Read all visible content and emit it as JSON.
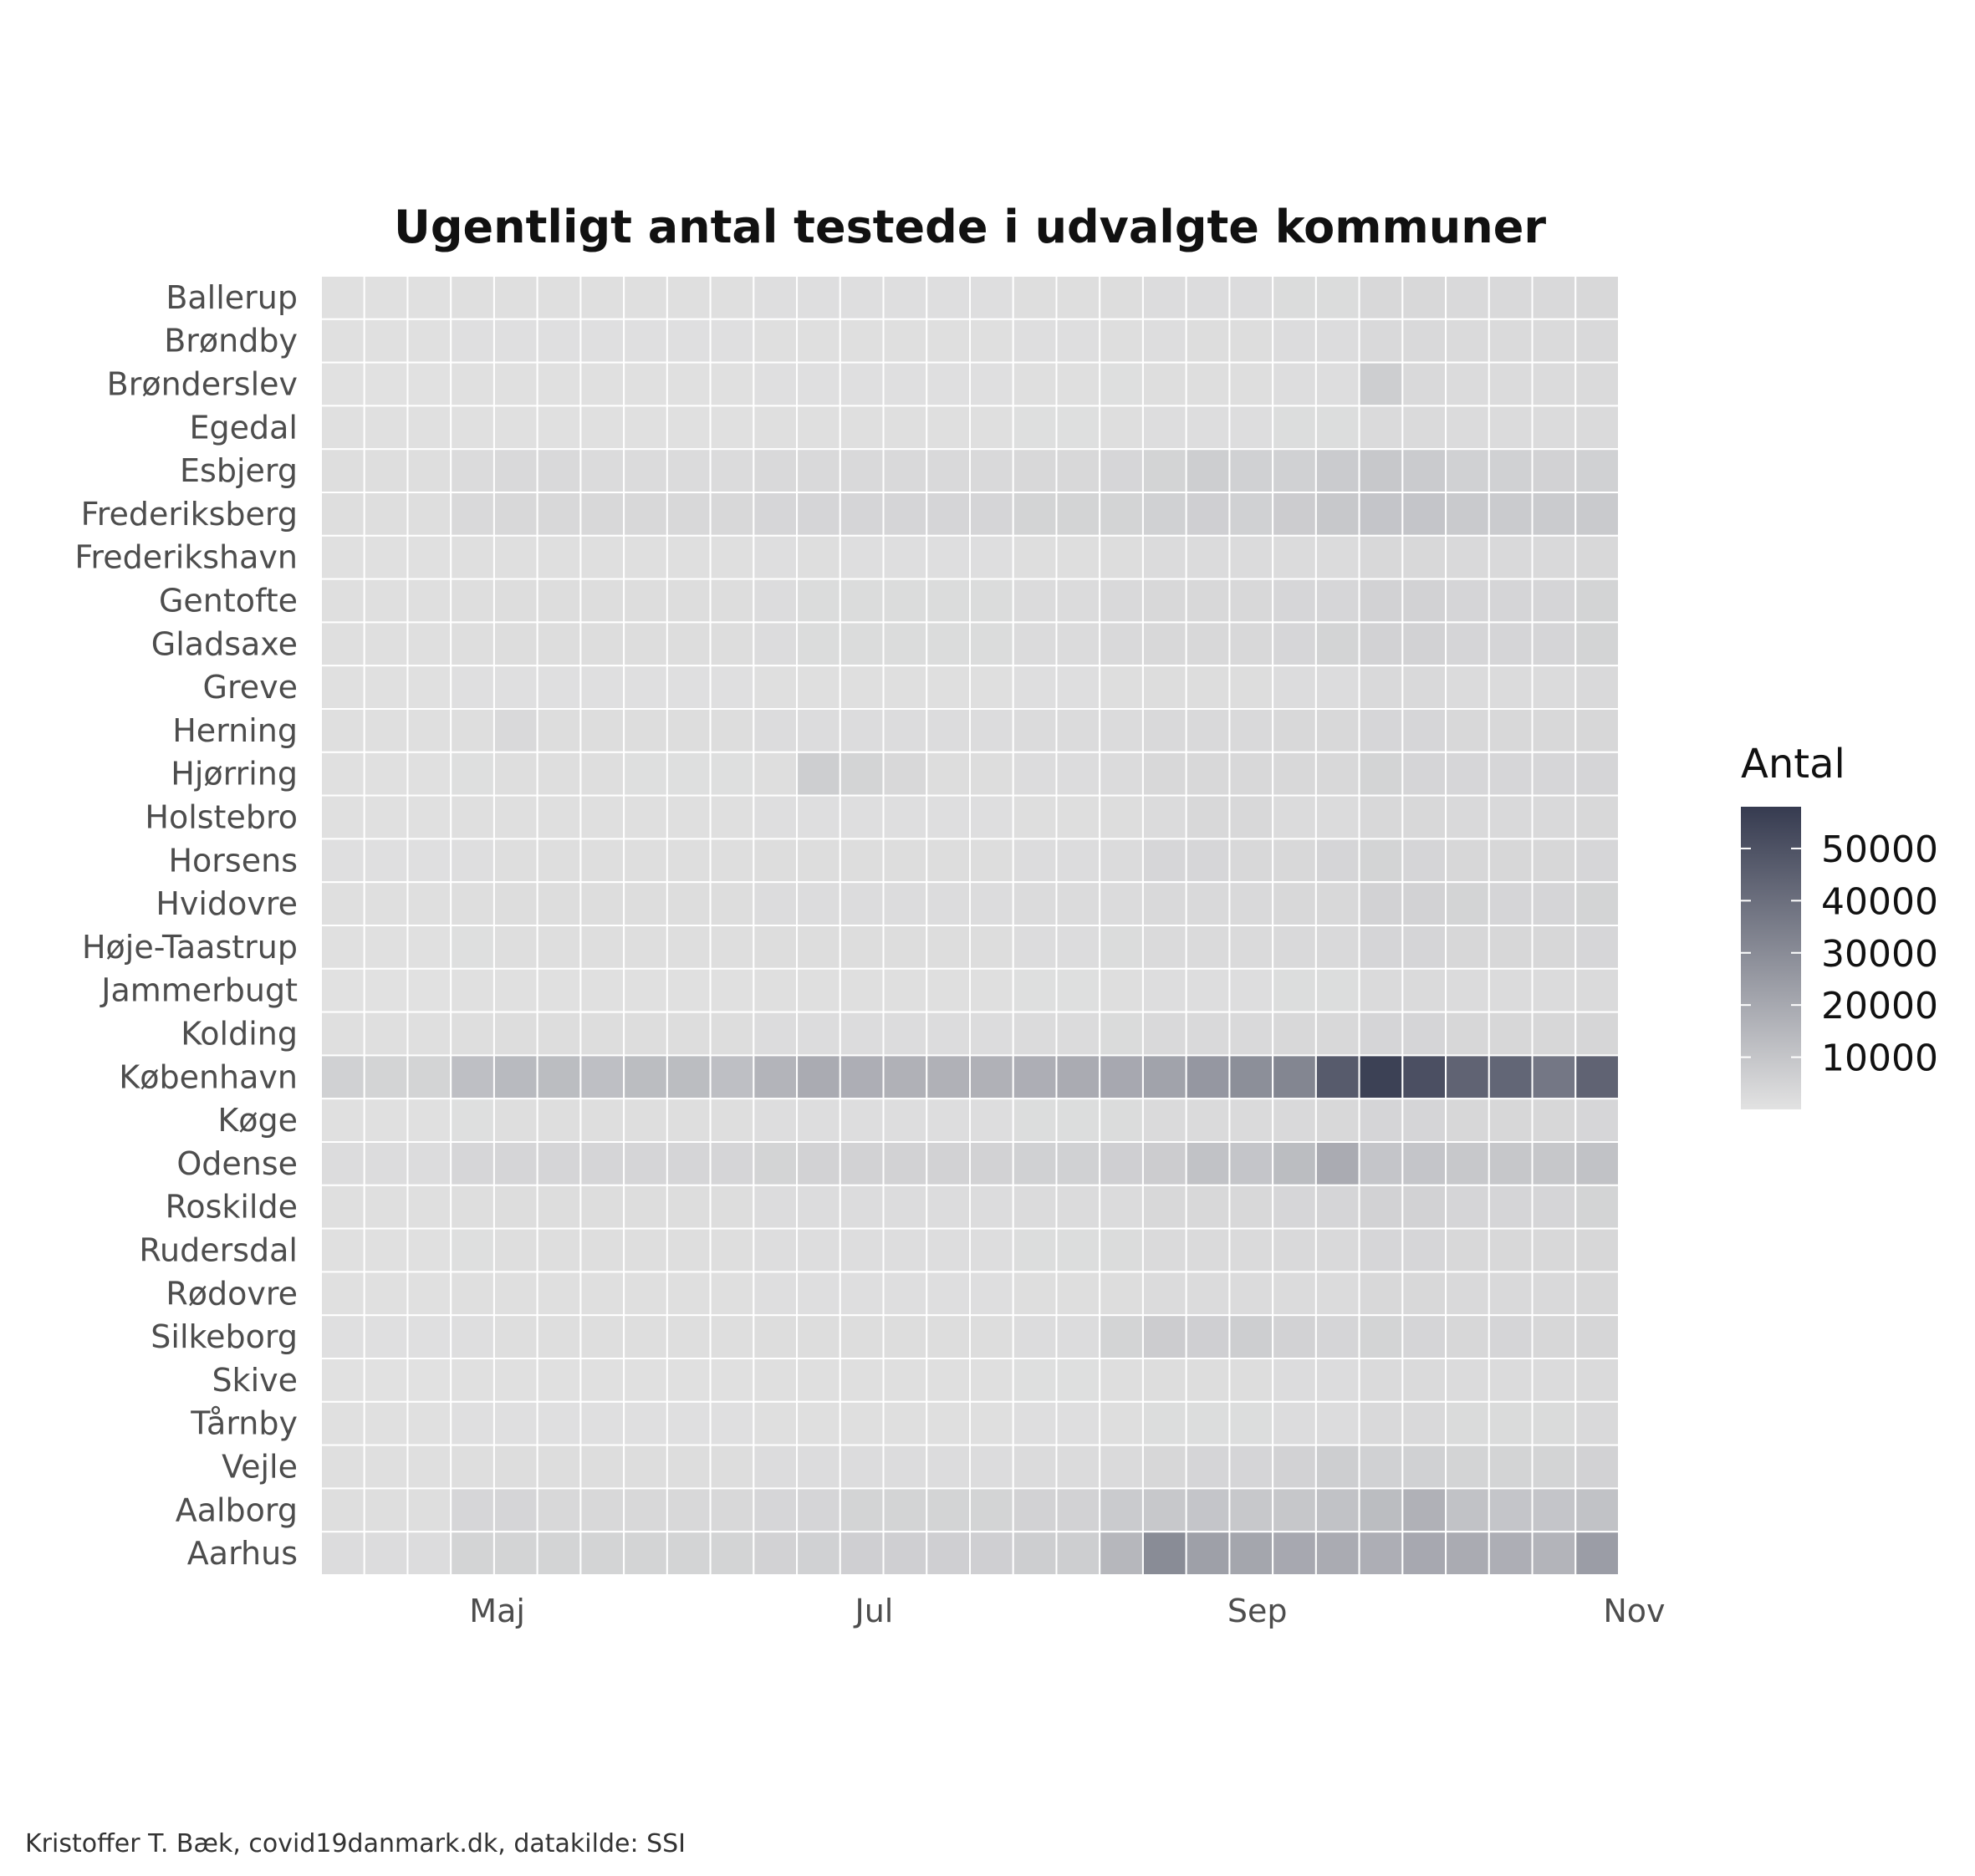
{
  "chart_data": {
    "type": "heatmap",
    "title": "Ugentligt antal testede i udvalgte kommuner",
    "caption": "Kristoffer T. Bæk, covid19danmark.dk, datakilde: SSI",
    "week_start": [
      "2020-04-06",
      "2020-04-13",
      "2020-04-20",
      "2020-04-27",
      "2020-05-04",
      "2020-05-11",
      "2020-05-18",
      "2020-05-25",
      "2020-06-01",
      "2020-06-08",
      "2020-06-15",
      "2020-06-22",
      "2020-06-29",
      "2020-07-06",
      "2020-07-13",
      "2020-07-20",
      "2020-07-27",
      "2020-08-03",
      "2020-08-10",
      "2020-08-17",
      "2020-08-24",
      "2020-08-31",
      "2020-09-07",
      "2020-09-14",
      "2020-09-21",
      "2020-09-28",
      "2020-10-05",
      "2020-10-12",
      "2020-10-19",
      "2020-10-26"
    ],
    "x_ticks": [
      {
        "label": "Maj",
        "date": "2020-05-01"
      },
      {
        "label": "Jul",
        "date": "2020-07-01"
      },
      {
        "label": "Sep",
        "date": "2020-09-01"
      },
      {
        "label": "Nov",
        "date": "2020-11-01"
      }
    ],
    "rows": [
      {
        "name": "Ballerup",
        "values": [
          800,
          800,
          800,
          1100,
          1100,
          1100,
          1100,
          1100,
          1100,
          1100,
          1300,
          1300,
          1300,
          1300,
          1300,
          1300,
          1500,
          1500,
          1800,
          2000,
          2000,
          2000,
          2200,
          2200,
          3500,
          3500,
          3000,
          3000,
          3000,
          3500
        ]
      },
      {
        "name": "Brøndby",
        "values": [
          700,
          700,
          700,
          900,
          900,
          900,
          900,
          900,
          900,
          900,
          1100,
          1100,
          1100,
          1100,
          1100,
          1100,
          1300,
          1300,
          1500,
          1700,
          1800,
          1800,
          2000,
          2000,
          3000,
          3000,
          2700,
          2700,
          2700,
          3000
        ]
      },
      {
        "name": "Brønderslev",
        "values": [
          500,
          500,
          500,
          700,
          700,
          700,
          700,
          700,
          700,
          700,
          900,
          900,
          900,
          900,
          900,
          900,
          1000,
          1000,
          1200,
          1400,
          1500,
          1500,
          1700,
          1700,
          7000,
          3000,
          2500,
          2500,
          2500,
          2800
        ]
      },
      {
        "name": "Egedal",
        "values": [
          600,
          600,
          600,
          800,
          800,
          800,
          800,
          800,
          800,
          800,
          1000,
          1000,
          1000,
          1000,
          1000,
          1000,
          1200,
          1200,
          1400,
          1600,
          1700,
          1700,
          1900,
          1900,
          2800,
          2800,
          2500,
          2500,
          2500,
          2800
        ]
      },
      {
        "name": "Esbjerg",
        "values": [
          1500,
          1500,
          1500,
          2500,
          3000,
          3000,
          2500,
          2500,
          2500,
          2500,
          3000,
          3000,
          3000,
          3000,
          3000,
          3000,
          3500,
          3500,
          4000,
          5000,
          7000,
          6000,
          6000,
          8000,
          9000,
          8000,
          6000,
          6000,
          5500,
          6000
        ]
      },
      {
        "name": "Frederiksberg",
        "values": [
          1500,
          1500,
          1500,
          3000,
          3500,
          3500,
          3500,
          3500,
          3500,
          3500,
          4000,
          4500,
          4500,
          4500,
          4500,
          4500,
          5000,
          5000,
          5000,
          6000,
          6500,
          6000,
          7500,
          9000,
          10000,
          10000,
          8500,
          8000,
          8000,
          8500
        ]
      },
      {
        "name": "Frederikshavn",
        "values": [
          700,
          700,
          700,
          1000,
          1000,
          1000,
          1000,
          1000,
          1000,
          1000,
          1300,
          1500,
          1300,
          1300,
          1300,
          1300,
          1500,
          1500,
          1800,
          2300,
          2500,
          2500,
          2500,
          2500,
          3500,
          3500,
          3000,
          3000,
          3000,
          3500
        ]
      },
      {
        "name": "Gentofte",
        "values": [
          1000,
          1000,
          1000,
          1500,
          1800,
          1800,
          1800,
          1800,
          1800,
          1800,
          2000,
          2200,
          2200,
          2200,
          2200,
          2200,
          2500,
          2500,
          3000,
          3500,
          3500,
          3500,
          4000,
          4000,
          5500,
          5500,
          4500,
          4500,
          4500,
          5000
        ]
      },
      {
        "name": "Gladsaxe",
        "values": [
          1000,
          1000,
          1000,
          1500,
          1800,
          1800,
          1800,
          1800,
          1800,
          1800,
          2000,
          2200,
          2200,
          2200,
          2200,
          2200,
          2500,
          2500,
          3000,
          3500,
          3500,
          3500,
          4000,
          5000,
          5500,
          5500,
          4500,
          4500,
          4500,
          5000
        ]
      },
      {
        "name": "Greve",
        "values": [
          600,
          600,
          600,
          900,
          900,
          900,
          900,
          900,
          900,
          900,
          1100,
          1100,
          1100,
          1100,
          1100,
          1100,
          1300,
          1300,
          1500,
          1800,
          1800,
          1800,
          2000,
          2000,
          3000,
          3000,
          2500,
          2500,
          2500,
          3000
        ]
      },
      {
        "name": "Herning",
        "values": [
          1000,
          1000,
          1000,
          1500,
          3000,
          1800,
          1800,
          1800,
          1800,
          1800,
          2000,
          2000,
          2000,
          2000,
          2000,
          2000,
          2300,
          2300,
          2500,
          3000,
          3000,
          3000,
          3500,
          3500,
          4000,
          4000,
          3500,
          3500,
          3500,
          3800
        ]
      },
      {
        "name": "Hjørring",
        "values": [
          800,
          800,
          800,
          1200,
          1500,
          1500,
          1500,
          1200,
          1200,
          1200,
          1500,
          7000,
          5000,
          3500,
          1800,
          1800,
          2000,
          2000,
          2500,
          3500,
          3500,
          3500,
          3500,
          3500,
          5000,
          4500,
          4000,
          4000,
          4000,
          4500
        ]
      },
      {
        "name": "Holstebro",
        "values": [
          700,
          700,
          700,
          1000,
          1000,
          1000,
          1000,
          1000,
          1000,
          1000,
          1300,
          1300,
          1300,
          1300,
          1300,
          1300,
          1500,
          1500,
          1800,
          2300,
          3500,
          3500,
          2500,
          2500,
          3500,
          3500,
          3000,
          3000,
          3000,
          3500
        ]
      },
      {
        "name": "Horsens",
        "values": [
          900,
          900,
          900,
          1300,
          1500,
          1500,
          1500,
          1500,
          1500,
          1500,
          1800,
          1800,
          1800,
          1800,
          1800,
          1800,
          2000,
          2000,
          2500,
          4000,
          4000,
          3500,
          3500,
          4500,
          5000,
          4500,
          3800,
          3800,
          3800,
          4000
        ]
      },
      {
        "name": "Hvidovre",
        "values": [
          1000,
          1000,
          1000,
          1500,
          1800,
          1800,
          1800,
          1800,
          1800,
          1800,
          2000,
          2000,
          2000,
          2000,
          2000,
          2000,
          2300,
          2300,
          2500,
          3000,
          3000,
          3000,
          3500,
          3500,
          5500,
          5500,
          5000,
          4500,
          4500,
          5000
        ]
      },
      {
        "name": "Høje-Taastrup",
        "values": [
          800,
          800,
          800,
          1200,
          1500,
          1500,
          1500,
          1500,
          1500,
          1500,
          1800,
          1800,
          1800,
          1800,
          1800,
          1800,
          2000,
          2000,
          2200,
          2800,
          2800,
          2800,
          3000,
          3000,
          4500,
          4500,
          3800,
          3800,
          3800,
          4000
        ]
      },
      {
        "name": "Jammerbugt",
        "values": [
          500,
          500,
          500,
          800,
          800,
          800,
          800,
          800,
          800,
          800,
          1000,
          1000,
          1000,
          1000,
          1000,
          1000,
          1200,
          1200,
          1400,
          1700,
          1700,
          1700,
          1900,
          1900,
          2800,
          2800,
          2400,
          2400,
          2400,
          2700
        ]
      },
      {
        "name": "Kolding",
        "values": [
          1000,
          1000,
          1000,
          1500,
          1800,
          1800,
          1800,
          1800,
          1800,
          1800,
          2000,
          2000,
          2000,
          2000,
          2000,
          2000,
          2300,
          2300,
          2600,
          3200,
          3200,
          3200,
          3500,
          3500,
          4500,
          4500,
          3800,
          3800,
          3800,
          4200
        ]
      },
      {
        "name": "København",
        "values": [
          6000,
          5000,
          5000,
          12000,
          14000,
          13000,
          12000,
          13000,
          13000,
          12000,
          16000,
          19000,
          18000,
          17000,
          17000,
          17000,
          18000,
          19000,
          20000,
          22000,
          26000,
          29000,
          32000,
          47000,
          56000,
          51000,
          44000,
          43000,
          37000,
          44000
        ]
      },
      {
        "name": "Køge",
        "values": [
          800,
          800,
          800,
          1200,
          1400,
          1400,
          1400,
          1400,
          1400,
          1400,
          1700,
          1700,
          1700,
          1700,
          1700,
          1700,
          1900,
          1900,
          2200,
          2800,
          2800,
          2800,
          3000,
          3500,
          4500,
          4500,
          3800,
          3800,
          3800,
          4000
        ]
      },
      {
        "name": "Odense",
        "values": [
          2000,
          2000,
          2000,
          4000,
          4500,
          4500,
          4500,
          4500,
          4500,
          4500,
          5000,
          5500,
          5500,
          5500,
          5500,
          5500,
          6000,
          6000,
          6500,
          7500,
          11000,
          10000,
          13000,
          19000,
          10000,
          10000,
          9000,
          9500,
          9500,
          11000
        ]
      },
      {
        "name": "Roskilde",
        "values": [
          1000,
          1000,
          1000,
          1500,
          1800,
          1800,
          1800,
          1800,
          1800,
          1800,
          2000,
          2000,
          2000,
          2000,
          2000,
          2000,
          2300,
          2300,
          2500,
          3500,
          3500,
          3500,
          4000,
          4500,
          5500,
          5500,
          4500,
          4500,
          4500,
          5000
        ]
      },
      {
        "name": "Rudersdal",
        "values": [
          800,
          800,
          800,
          1200,
          1400,
          1400,
          1400,
          1400,
          1400,
          1400,
          1700,
          1700,
          1700,
          1700,
          1700,
          1700,
          1900,
          1900,
          2200,
          2800,
          2800,
          2800,
          3000,
          3000,
          4000,
          4000,
          3500,
          3500,
          3500,
          3800
        ]
      },
      {
        "name": "Rødovre",
        "values": [
          700,
          700,
          700,
          1000,
          1100,
          1100,
          1100,
          1100,
          1100,
          1100,
          1300,
          1300,
          1300,
          1300,
          1300,
          1300,
          1500,
          1500,
          1800,
          2300,
          2300,
          2300,
          2500,
          2500,
          3500,
          3500,
          3000,
          3000,
          3000,
          3500
        ]
      },
      {
        "name": "Silkeborg",
        "values": [
          900,
          900,
          900,
          1300,
          1500,
          1500,
          1500,
          1500,
          1500,
          1500,
          1800,
          1800,
          1800,
          1800,
          1800,
          1800,
          2000,
          2000,
          5000,
          7500,
          6500,
          7000,
          5500,
          4500,
          5000,
          4500,
          3800,
          4500,
          3800,
          4200
        ]
      },
      {
        "name": "Skive",
        "values": [
          500,
          500,
          500,
          800,
          800,
          800,
          800,
          800,
          800,
          800,
          1000,
          1000,
          1000,
          1000,
          1000,
          1000,
          1200,
          1200,
          1400,
          1800,
          1800,
          1800,
          2000,
          2000,
          2800,
          2800,
          2400,
          2400,
          2400,
          2800
        ]
      },
      {
        "name": "Tårnby",
        "values": [
          600,
          600,
          600,
          900,
          900,
          900,
          900,
          900,
          900,
          900,
          1100,
          1100,
          1100,
          1100,
          1100,
          1100,
          1300,
          1300,
          1500,
          1900,
          1900,
          1900,
          2100,
          2100,
          3000,
          3000,
          2600,
          2600,
          2600,
          3000
        ]
      },
      {
        "name": "Vejle",
        "values": [
          1000,
          1000,
          1000,
          1500,
          1800,
          1800,
          1800,
          1800,
          1800,
          1800,
          2000,
          2000,
          2000,
          2000,
          2000,
          2000,
          2300,
          2300,
          2800,
          3800,
          4500,
          4500,
          5500,
          7000,
          6000,
          6000,
          5000,
          5000,
          5000,
          5500
        ]
      },
      {
        "name": "Aalborg",
        "values": [
          1500,
          1500,
          1500,
          4000,
          4500,
          3500,
          3500,
          3500,
          3500,
          3500,
          4000,
          4500,
          5000,
          5000,
          5000,
          5000,
          5500,
          5500,
          8000,
          9000,
          10000,
          9000,
          9500,
          11000,
          13000,
          17000,
          11000,
          10000,
          10000,
          11000
        ]
      },
      {
        "name": "Aarhus",
        "values": [
          2000,
          2000,
          2000,
          5000,
          5000,
          5000,
          5000,
          5000,
          5000,
          5000,
          5500,
          6000,
          6500,
          6500,
          6500,
          6500,
          7000,
          7000,
          15000,
          30000,
          23000,
          21000,
          20000,
          19000,
          18000,
          20000,
          19000,
          18000,
          16000,
          24000
        ]
      }
    ],
    "legend": {
      "title": "Antal",
      "ticks": [
        10000,
        20000,
        30000,
        40000,
        50000
      ],
      "min": 0,
      "max": 58000,
      "color_low": "#e2e2e2",
      "color_high": "#363b50"
    },
    "cell_border_color": "#ffffff"
  }
}
